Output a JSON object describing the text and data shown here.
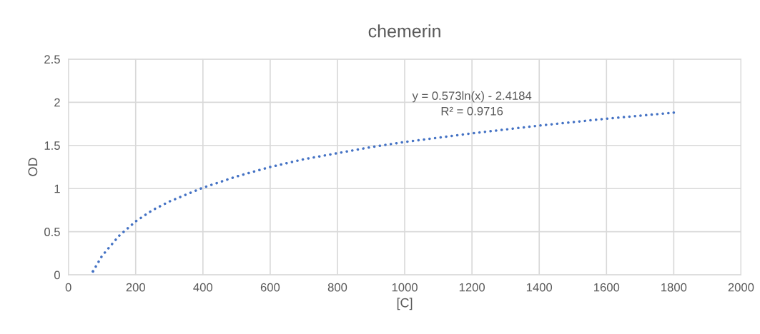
{
  "chart_data": {
    "type": "line",
    "title": "chemerin",
    "xlabel": "[C]",
    "ylabel": "OD",
    "xlim": [
      0,
      2000
    ],
    "xticks": [
      0,
      200,
      400,
      600,
      800,
      1000,
      1200,
      1400,
      1600,
      1800,
      2000
    ],
    "ylim": [
      0,
      2.5
    ],
    "yticks": [
      0,
      0.5,
      1,
      1.5,
      2,
      2.5
    ],
    "grid": true,
    "line_style": "dotted",
    "marker": "none",
    "series": [
      {
        "color": "#4472c4",
        "x": [
          73,
          100,
          150,
          200,
          250,
          300,
          400,
          500,
          600,
          700,
          800,
          900,
          1000,
          1200,
          1400,
          1600,
          1800
        ],
        "values": [
          0.04,
          0.22,
          0.45,
          0.62,
          0.75,
          0.85,
          1.01,
          1.14,
          1.25,
          1.34,
          1.41,
          1.48,
          1.54,
          1.64,
          1.73,
          1.81,
          1.88
        ]
      }
    ],
    "annotations": [
      "y = 0.573ln(x) - 2.4184\nR² = 0.9716"
    ]
  }
}
